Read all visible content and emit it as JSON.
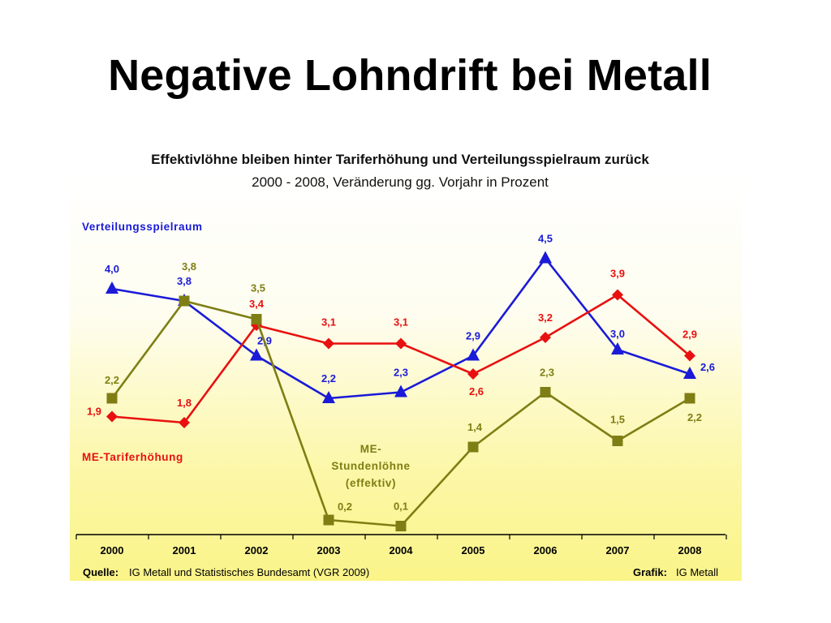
{
  "slide_title": "Negative Lohndrift bei Metall",
  "footer": {
    "source_label": "Quelle:",
    "source_text": "IG Metall und Statistisches Bundesamt (VGR 2009)",
    "credit_label": "Grafik:",
    "credit_text": "IG Metall"
  },
  "colors": {
    "blue": "#1a1ad8",
    "red": "#e81010",
    "olive": "#7e7e14"
  },
  "chart_data": {
    "type": "line",
    "title": "Effektivlöhne bleiben hinter Tariferhöhung und Verteilungsspielraum zurück",
    "subtitle": "2000 - 2008, Veränderung gg. Vorjahr in Prozent",
    "categories": [
      "2000",
      "2001",
      "2002",
      "2003",
      "2004",
      "2005",
      "2006",
      "2007",
      "2008"
    ],
    "ylim": [
      0,
      4.5
    ],
    "grid": false,
    "legend": "inline labels",
    "series": [
      {
        "name": "Verteilungsspielraum",
        "color": "#1a1ad8",
        "marker": "triangle",
        "values": [
          4.0,
          3.8,
          2.9,
          2.2,
          2.3,
          2.9,
          4.5,
          3.0,
          2.6
        ],
        "labels": [
          "4,0",
          "3,8",
          "2,9",
          "2,2",
          "2,3",
          "2,9",
          "4,5",
          "3,0",
          "2,6"
        ]
      },
      {
        "name": "ME-Tariferhöhung",
        "color": "#e81010",
        "marker": "diamond",
        "values": [
          1.9,
          1.8,
          3.4,
          3.1,
          3.1,
          2.6,
          3.2,
          3.9,
          2.9
        ],
        "labels": [
          "1,9",
          "1,8",
          "3,4",
          "3,1",
          "3,1",
          "2,6",
          "3,2",
          "3,9",
          "2,9"
        ]
      },
      {
        "name": "ME-\nStundenlöhne\n(effektiv)",
        "color": "#7e7e14",
        "marker": "square",
        "values": [
          2.2,
          3.8,
          3.5,
          0.2,
          0.1,
          1.4,
          2.3,
          1.5,
          2.2
        ],
        "labels": [
          "2,2",
          "3,8",
          "3,5",
          "0,2",
          "0,1",
          "1,4",
          "2,3",
          "1,5",
          "2,2"
        ]
      }
    ]
  }
}
